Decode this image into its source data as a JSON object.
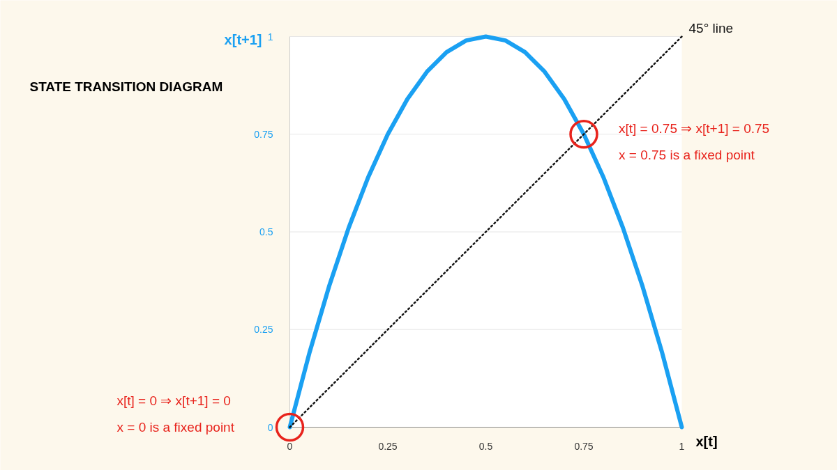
{
  "chart_data": {
    "type": "line",
    "title": "STATE TRANSITION DIAGRAM",
    "xlabel": "x[t]",
    "ylabel": "x[t+1]",
    "xlim": [
      0,
      1
    ],
    "ylim": [
      0,
      1
    ],
    "xticks": [
      0,
      0.25,
      0.5,
      0.75,
      1
    ],
    "yticks": [
      0,
      0.25,
      0.5,
      0.75,
      1
    ],
    "grid": "y",
    "series": [
      {
        "color": "#1aa0f2",
        "x": [
          0,
          0.05,
          0.1,
          0.15,
          0.2,
          0.25,
          0.3,
          0.35,
          0.4,
          0.45,
          0.5,
          0.55,
          0.6,
          0.65,
          0.7,
          0.75,
          0.8,
          0.85,
          0.9,
          0.95,
          1
        ],
        "values": [
          0,
          0.19,
          0.36,
          0.51,
          0.64,
          0.75,
          0.84,
          0.91,
          0.96,
          0.99,
          1,
          0.99,
          0.96,
          0.91,
          0.84,
          0.75,
          0.64,
          0.51,
          0.36,
          0.19,
          0
        ]
      },
      {
        "name": "45° line",
        "color": "#111111",
        "line_style": "dotted",
        "x": [
          0,
          1
        ],
        "values": [
          0,
          1
        ]
      },
      {
        "type": "scatter",
        "marker": "circle",
        "color": "#e8231c",
        "x": [
          0,
          0.75
        ],
        "values": [
          0,
          0.75
        ]
      }
    ],
    "annotations": [
      "x[t] = 0.75 ⇒ x[t+1] = 0.75",
      "x = 0.75 is a fixed point",
      "x[t] = 0 ⇒ x[t+1] = 0",
      "x = 0 is a fixed point"
    ]
  }
}
